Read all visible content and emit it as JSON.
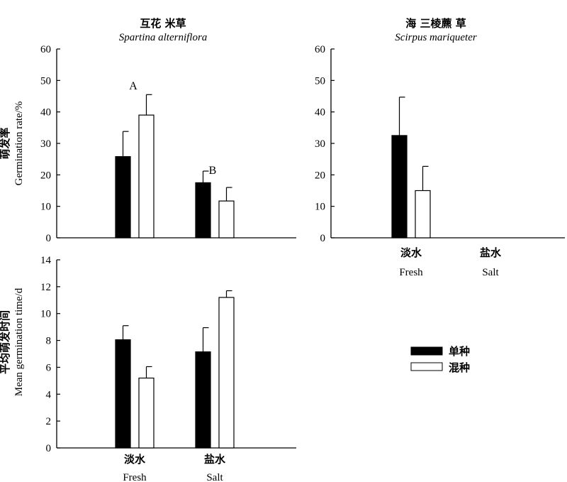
{
  "chart_data": [
    {
      "type": "bar",
      "panel": "germination-rate-spartina",
      "title": "互花 米草",
      "subtitle": "Spartina alterniflora",
      "ylabel_cn": "萌发率",
      "ylabel_en": "Germination rate/%",
      "ylim": [
        0,
        60
      ],
      "yticks": [
        0,
        10,
        20,
        30,
        40,
        50,
        60
      ],
      "categories": [
        "Fresh",
        "Salt"
      ],
      "series": [
        {
          "name": "单种",
          "values": [
            25.8,
            17.5
          ],
          "errors": [
            8.0,
            3.7
          ]
        },
        {
          "name": "混种",
          "values": [
            39.0,
            11.7
          ],
          "errors": [
            6.5,
            4.3
          ]
        }
      ],
      "annotations": [
        "A",
        "B"
      ]
    },
    {
      "type": "bar",
      "panel": "germination-rate-scirpus",
      "title": "海 三棱藨 草",
      "subtitle": "Scirpus mariqueter",
      "ylim": [
        0,
        60
      ],
      "yticks": [
        0,
        10,
        20,
        30,
        40,
        50,
        60
      ],
      "categories": [
        "Fresh",
        "Salt"
      ],
      "x_labels_cn": [
        "淡水",
        "盐水"
      ],
      "x_labels_en": [
        "Fresh",
        "Salt"
      ],
      "series": [
        {
          "name": "单种",
          "values": [
            32.5,
            0
          ],
          "errors": [
            12.2,
            0
          ]
        },
        {
          "name": "混种",
          "values": [
            15.0,
            0
          ],
          "errors": [
            7.7,
            0
          ]
        }
      ]
    },
    {
      "type": "bar",
      "panel": "mean-germination-time-spartina",
      "ylabel_cn": "平均萌发时间",
      "ylabel_en": "Mean germination time/d",
      "ylim": [
        0,
        14
      ],
      "yticks": [
        0,
        2,
        4,
        6,
        8,
        10,
        12,
        14
      ],
      "categories": [
        "Fresh",
        "Salt"
      ],
      "x_labels_cn": [
        "淡水",
        "盐水"
      ],
      "x_labels_en": [
        "Fresh",
        "Salt"
      ],
      "series": [
        {
          "name": "单种",
          "values": [
            8.05,
            7.15
          ],
          "errors": [
            1.05,
            1.8
          ]
        },
        {
          "name": "混种",
          "values": [
            5.2,
            11.2
          ],
          "errors": [
            0.85,
            0.5
          ]
        }
      ]
    }
  ],
  "legend": {
    "placement": "right-middle",
    "items": [
      {
        "label": "单种",
        "fill": "#000000"
      },
      {
        "label": "混种",
        "fill": "#ffffff"
      }
    ]
  },
  "colors": {
    "monoculture": "#000000",
    "mixture": "#ffffff",
    "axis": "#000000"
  }
}
